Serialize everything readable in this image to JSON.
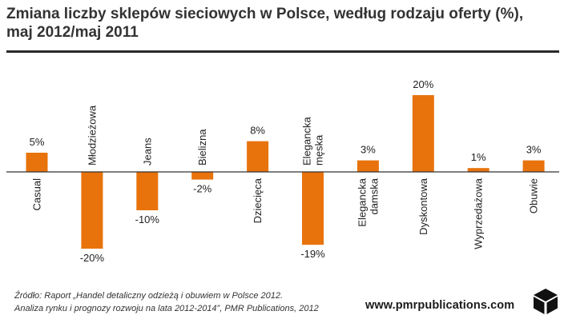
{
  "title": {
    "line1": "Zmiana liczby sklepów sieciowych w Polsce, według rodzaju oferty (%),",
    "line2": "maj 2012/maj 2011"
  },
  "chart_data": {
    "type": "bar",
    "title": "Zmiana liczby sklepów sieciowych w Polsce, według rodzaju oferty (%), maj 2012/maj 2011",
    "categories": [
      [
        "Casual"
      ],
      [
        "Młodzieżowa"
      ],
      [
        "Jeans"
      ],
      [
        "Bielizna"
      ],
      [
        "Dziecięca"
      ],
      [
        "Elegancka",
        "męska"
      ],
      [
        "Elegancka",
        "damska"
      ],
      [
        "Dyskontowa"
      ],
      [
        "Wyprzedażowa"
      ],
      [
        "Obuwie"
      ]
    ],
    "values": [
      5,
      -20,
      -10,
      -2,
      8,
      -19,
      3,
      20,
      1,
      3
    ],
    "value_labels": [
      "5%",
      "-20%",
      "-10%",
      "-2%",
      "8%",
      "-19%",
      "3%",
      "20%",
      "1%",
      "3%"
    ],
    "unit": "%",
    "ylim": [
      -20,
      20
    ],
    "bar_color": "#e8730c",
    "grid": false,
    "legend": false
  },
  "source": {
    "line1": "Źródło: Raport „Handel detaliczny odzieżą i obuwiem w Polsce 2012.",
    "line2": "Analiza rynku i prognozy rozwoju na lata 2012-2014”, PMR Publications, 2012"
  },
  "logo": {
    "text": "www.pmrpublications.com",
    "icon": "pmr-cube-icon"
  }
}
